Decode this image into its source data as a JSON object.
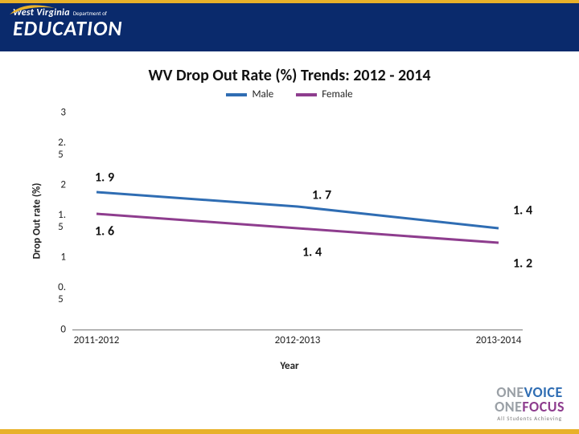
{
  "frame": {
    "accent_top": "#e8b12a",
    "accent_bottom": "#e8b12a"
  },
  "header": {
    "bg": "#0a2a6c",
    "logo_state": "West Virginia",
    "logo_dept": "Department of",
    "logo_main": "EDUCATION",
    "swoosh_color": "#e8b12a"
  },
  "chart": {
    "type": "line",
    "title": "WV Drop Out Rate (%) Trends: 2012 - 2014",
    "title_fontsize": 20,
    "background_color": "#ffffff",
    "x_axis": {
      "title": "Year",
      "categories": [
        "2011-2012",
        "2012-2013",
        "2013-2014"
      ]
    },
    "y_axis": {
      "title": "Drop Out rate (%)",
      "min": 0,
      "max": 3,
      "step": 0.5
    },
    "series": [
      {
        "name": "Male",
        "color": "#2f6db3",
        "width": 3,
        "values": [
          1.9,
          1.7,
          1.4
        ]
      },
      {
        "name": "Female",
        "color": "#8e3d8e",
        "width": 3,
        "values": [
          1.6,
          1.4,
          1.2
        ]
      }
    ],
    "legend": {
      "male": "Male",
      "female": "Female"
    },
    "axis_color": "#777777",
    "label_fontsize": 13,
    "data_label_fontsize": 16
  },
  "footer": {
    "line1a": "ONE",
    "line1b": "VOICE",
    "line2a": "ONE",
    "line2b": "FOCUS",
    "tag": "All Students Achieving",
    "c1": "#2f6db3",
    "c2": "#e8b12a",
    "c3": "#8e3d8e",
    "c_gray": "#9aa0a6"
  }
}
